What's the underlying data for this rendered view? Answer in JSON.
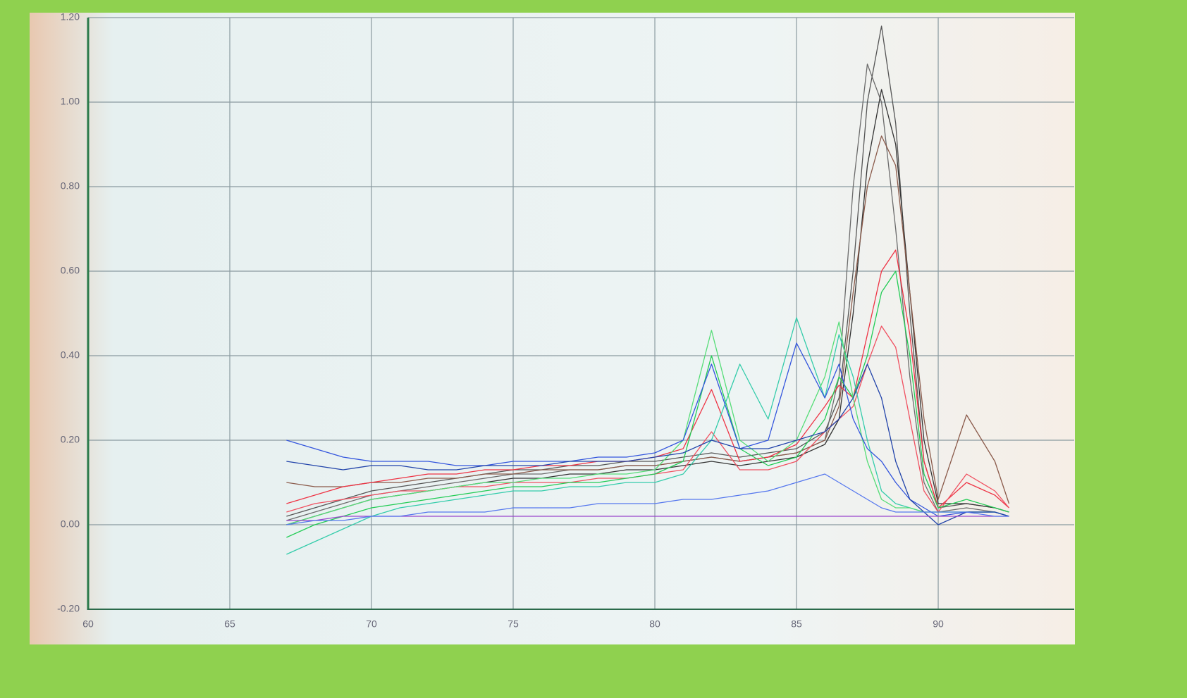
{
  "chart_data": {
    "type": "line",
    "x": [
      67,
      68,
      69,
      70,
      71,
      72,
      73,
      74,
      75,
      76,
      77,
      78,
      79,
      80,
      81,
      82,
      83,
      84,
      85,
      86,
      86.5,
      87,
      87.5,
      88,
      88.5,
      89,
      89.5,
      90,
      91,
      92,
      92.5
    ],
    "xlim": [
      60,
      94.8
    ],
    "xticks": [
      60,
      65,
      70,
      75,
      80,
      85,
      90
    ],
    "ylim": [
      -0.2,
      1.2
    ],
    "yticks": [
      {
        "value": -0.2,
        "label": "-0.20"
      },
      {
        "value": 0,
        "label": "0.00"
      },
      {
        "value": 0.2,
        "label": "0.20"
      },
      {
        "value": 0.4,
        "label": "0.40"
      },
      {
        "value": 0.6,
        "label": "0.60"
      },
      {
        "value": 0.8,
        "label": "0.80"
      },
      {
        "value": 1.0,
        "label": "1.00"
      },
      {
        "value": 1.2,
        "label": "1.20"
      }
    ],
    "grid": true,
    "series": [
      {
        "color": "#555555",
        "values": [
          0.02,
          0.04,
          0.06,
          0.08,
          0.09,
          0.1,
          0.11,
          0.12,
          0.13,
          0.13,
          0.14,
          0.14,
          0.15,
          0.15,
          0.16,
          0.17,
          0.16,
          0.17,
          0.18,
          0.22,
          0.3,
          0.6,
          1.0,
          1.18,
          0.95,
          0.5,
          0.15,
          0.04,
          0.05,
          0.04,
          0.03
        ]
      },
      {
        "color": "#6b6b6b",
        "values": [
          0.01,
          0.03,
          0.05,
          0.07,
          0.08,
          0.09,
          0.1,
          0.11,
          0.12,
          0.12,
          0.13,
          0.13,
          0.14,
          0.14,
          0.15,
          0.16,
          0.15,
          0.16,
          0.17,
          0.2,
          0.35,
          0.8,
          1.09,
          1.0,
          0.7,
          0.35,
          0.1,
          0.03,
          0.04,
          0.03,
          0.02
        ]
      },
      {
        "color": "#333333",
        "values": [
          0.0,
          0.02,
          0.04,
          0.06,
          0.07,
          0.08,
          0.09,
          0.1,
          0.11,
          0.11,
          0.12,
          0.12,
          0.13,
          0.13,
          0.14,
          0.15,
          0.14,
          0.15,
          0.16,
          0.19,
          0.25,
          0.5,
          0.85,
          1.03,
          0.9,
          0.55,
          0.2,
          0.05,
          0.05,
          0.04,
          0.03
        ]
      },
      {
        "color": "#8a5a4a",
        "values": [
          0.1,
          0.09,
          0.09,
          0.1,
          0.1,
          0.11,
          0.11,
          0.12,
          0.12,
          0.13,
          0.13,
          0.13,
          0.14,
          0.14,
          0.15,
          0.16,
          0.15,
          0.16,
          0.17,
          0.2,
          0.28,
          0.55,
          0.8,
          0.92,
          0.85,
          0.55,
          0.25,
          0.06,
          0.26,
          0.15,
          0.05
        ]
      },
      {
        "color": "#ee3344",
        "values": [
          0.05,
          0.07,
          0.09,
          0.1,
          0.11,
          0.12,
          0.12,
          0.13,
          0.13,
          0.14,
          0.14,
          0.15,
          0.15,
          0.16,
          0.18,
          0.32,
          0.15,
          0.16,
          0.19,
          0.28,
          0.33,
          0.3,
          0.45,
          0.6,
          0.65,
          0.45,
          0.15,
          0.04,
          0.1,
          0.07,
          0.04
        ]
      },
      {
        "color": "#f05060",
        "values": [
          0.03,
          0.05,
          0.06,
          0.07,
          0.08,
          0.08,
          0.09,
          0.09,
          0.1,
          0.1,
          0.1,
          0.11,
          0.11,
          0.12,
          0.13,
          0.22,
          0.13,
          0.13,
          0.15,
          0.22,
          0.25,
          0.28,
          0.38,
          0.47,
          0.42,
          0.25,
          0.08,
          0.03,
          0.12,
          0.08,
          0.04
        ]
      },
      {
        "color": "#22cc55",
        "values": [
          -0.03,
          0.0,
          0.02,
          0.04,
          0.05,
          0.06,
          0.07,
          0.08,
          0.09,
          0.09,
          0.1,
          0.1,
          0.11,
          0.12,
          0.15,
          0.4,
          0.18,
          0.14,
          0.16,
          0.25,
          0.35,
          0.3,
          0.4,
          0.55,
          0.6,
          0.4,
          0.12,
          0.04,
          0.06,
          0.04,
          0.03
        ]
      },
      {
        "color": "#33ccaa",
        "values": [
          -0.07,
          -0.04,
          -0.01,
          0.02,
          0.04,
          0.05,
          0.06,
          0.07,
          0.08,
          0.08,
          0.09,
          0.09,
          0.1,
          0.1,
          0.12,
          0.2,
          0.38,
          0.25,
          0.49,
          0.3,
          0.45,
          0.35,
          0.2,
          0.08,
          0.05,
          0.04,
          0.03,
          0.03,
          0.03,
          0.03,
          0.02
        ]
      },
      {
        "color": "#55dd77",
        "values": [
          0.0,
          0.02,
          0.04,
          0.06,
          0.07,
          0.08,
          0.09,
          0.1,
          0.1,
          0.11,
          0.11,
          0.12,
          0.12,
          0.13,
          0.2,
          0.46,
          0.2,
          0.15,
          0.2,
          0.35,
          0.48,
          0.3,
          0.15,
          0.06,
          0.04,
          0.04,
          0.03,
          0.03,
          0.03,
          0.03,
          0.02
        ]
      },
      {
        "color": "#3355dd",
        "values": [
          0.2,
          0.18,
          0.16,
          0.15,
          0.15,
          0.15,
          0.14,
          0.14,
          0.15,
          0.15,
          0.15,
          0.16,
          0.16,
          0.17,
          0.2,
          0.38,
          0.18,
          0.2,
          0.43,
          0.3,
          0.38,
          0.25,
          0.18,
          0.15,
          0.1,
          0.06,
          0.04,
          0.02,
          0.03,
          0.03,
          0.02
        ]
      },
      {
        "color": "#2244aa",
        "values": [
          0.15,
          0.14,
          0.13,
          0.14,
          0.14,
          0.13,
          0.13,
          0.14,
          0.14,
          0.14,
          0.15,
          0.15,
          0.15,
          0.16,
          0.17,
          0.2,
          0.18,
          0.18,
          0.2,
          0.22,
          0.25,
          0.3,
          0.38,
          0.3,
          0.15,
          0.06,
          0.03,
          0.0,
          0.03,
          0.03,
          0.02
        ]
      },
      {
        "color": "#9944cc",
        "values": [
          0.01,
          0.01,
          0.02,
          0.02,
          0.02,
          0.02,
          0.02,
          0.02,
          0.02,
          0.02,
          0.02,
          0.02,
          0.02,
          0.02,
          0.02,
          0.02,
          0.02,
          0.02,
          0.02,
          0.02,
          0.02,
          0.02,
          0.02,
          0.02,
          0.02,
          0.02,
          0.02,
          0.02,
          0.02,
          0.02,
          0.02
        ]
      },
      {
        "color": "#5577ee",
        "values": [
          0.0,
          0.01,
          0.01,
          0.02,
          0.02,
          0.03,
          0.03,
          0.03,
          0.04,
          0.04,
          0.04,
          0.05,
          0.05,
          0.05,
          0.06,
          0.06,
          0.07,
          0.08,
          0.1,
          0.12,
          0.1,
          0.08,
          0.06,
          0.04,
          0.03,
          0.03,
          0.03,
          0.03,
          0.03,
          0.02,
          0.02
        ]
      }
    ]
  }
}
